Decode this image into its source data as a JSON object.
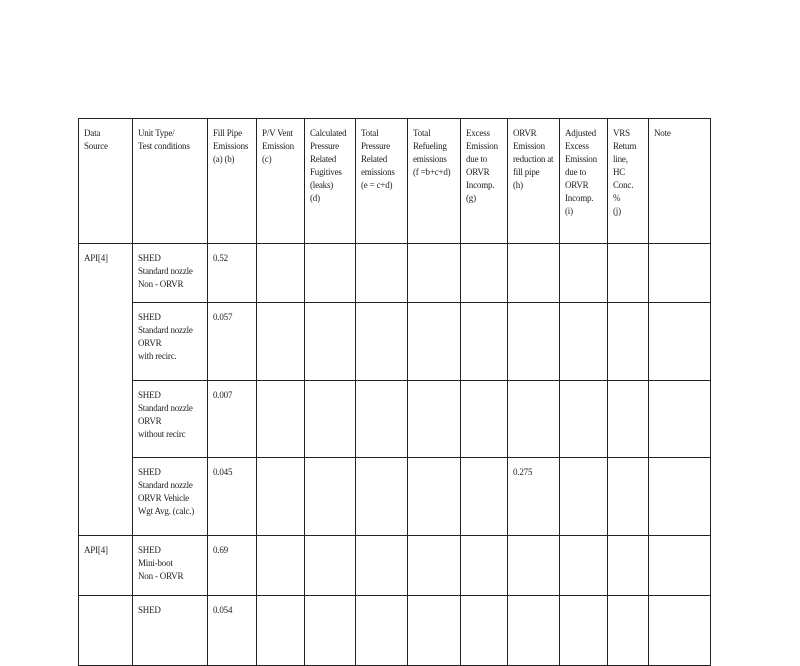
{
  "headers": [
    "Data\nSource",
    "Unit Type/\nTest conditions",
    "Fill Pipe\nEmissions\n(a) (b)",
    "P/V Vent\nEmission\n(c)",
    "Calculated\nPressure\nRelated\nFugitives\n(leaks)\n(d)",
    "Total\nPressure\nRelated\nemissions\n(e = c+d)",
    "Total\nRefueling\nemissions\n(f =b+c+d)",
    "Excess\nEmission\ndue to\nORVR\nIncomp.\n(g)",
    "ORVR\nEmission\nreduction at\nfill pipe\n(h)",
    "Adjusted\nExcess\nEmission\ndue to\nORVR\nIncomp.\n(i)",
    "VRS\nReturn\nline,\nHC\nConc.\n%\n(j)",
    "Note"
  ],
  "rows": [
    {
      "source": "API[4]",
      "unit": "SHED\nStandard nozzle\nNon - ORVR",
      "fill": "0.52",
      "orvr_reduction": ""
    },
    {
      "source": "",
      "unit": "SHED\nStandard nozzle\nORVR\nwith recirc.",
      "fill": "0.057",
      "orvr_reduction": ""
    },
    {
      "source": "",
      "unit": "SHED\nStandard nozzle\nORVR\nwithout recirc",
      "fill": "0.007",
      "orvr_reduction": ""
    },
    {
      "source": "",
      "unit": "SHED\nStandard nozzle\nORVR Vehicle\nWgt Avg. (calc.)",
      "fill": "0.045",
      "orvr_reduction": "0.275"
    },
    {
      "source": "API[4]",
      "unit": "SHED\nMini-boot\nNon - ORVR",
      "fill": "0.69",
      "orvr_reduction": ""
    },
    {
      "source": "",
      "unit": "SHED",
      "fill": "0.054",
      "orvr_reduction": ""
    }
  ]
}
